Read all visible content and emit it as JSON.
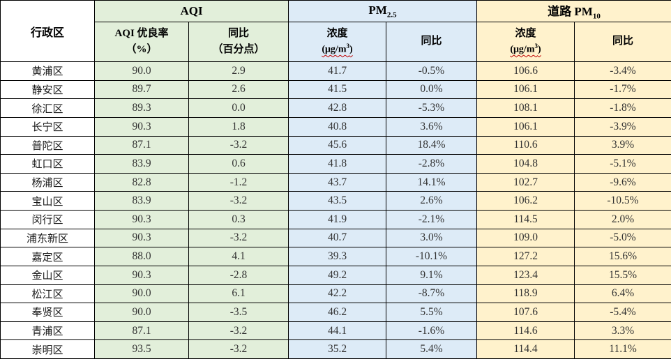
{
  "colors": {
    "aqi_section": "#e2efda",
    "pm25_section": "#ddebf7",
    "pm10_section": "#fff2cc",
    "border": "#000000",
    "header_text": "#000000",
    "body_text": "#333333",
    "spellcheck_underline": "#c00000"
  },
  "table": {
    "header": {
      "district": "行政区"
    },
    "groups": [
      {
        "title": {
          "pre": "AQI",
          "sub": ""
        },
        "cols": [
          {
            "line1": "AQI 优良率",
            "line2": "（%）"
          },
          {
            "line1": "同比",
            "line2": "（百分点）"
          }
        ]
      },
      {
        "title": {
          "pre": "PM",
          "sub": "2.5"
        },
        "cols": [
          {
            "line1": "浓度",
            "unit": true
          },
          {
            "line1": "同比"
          }
        ]
      },
      {
        "title": {
          "pre": "道路 PM",
          "sub": "10"
        },
        "cols": [
          {
            "line1": "浓度",
            "unit": true
          },
          {
            "line1": "同比"
          }
        ]
      }
    ],
    "unit": {
      "open": "(",
      "base": "μg/m",
      "sup": "3",
      "close": ")"
    },
    "rows": [
      {
        "district": "黄浦区",
        "aqi_rate": "90.0",
        "aqi_yoy": "2.9",
        "pm25_conc": "41.7",
        "pm25_yoy": "-0.5%",
        "pm10_conc": "106.6",
        "pm10_yoy": "-3.4%"
      },
      {
        "district": "静安区",
        "aqi_rate": "89.7",
        "aqi_yoy": "2.6",
        "pm25_conc": "41.5",
        "pm25_yoy": "0.0%",
        "pm10_conc": "106.1",
        "pm10_yoy": "-1.7%"
      },
      {
        "district": "徐汇区",
        "aqi_rate": "89.3",
        "aqi_yoy": "0.0",
        "pm25_conc": "42.8",
        "pm25_yoy": "-5.3%",
        "pm10_conc": "108.1",
        "pm10_yoy": "-1.8%"
      },
      {
        "district": "长宁区",
        "aqi_rate": "90.3",
        "aqi_yoy": "1.8",
        "pm25_conc": "40.8",
        "pm25_yoy": "3.6%",
        "pm10_conc": "106.1",
        "pm10_yoy": "-3.9%"
      },
      {
        "district": "普陀区",
        "aqi_rate": "87.1",
        "aqi_yoy": "-3.2",
        "pm25_conc": "45.6",
        "pm25_yoy": "18.4%",
        "pm10_conc": "110.6",
        "pm10_yoy": "3.9%"
      },
      {
        "district": "虹口区",
        "aqi_rate": "83.9",
        "aqi_yoy": "0.6",
        "pm25_conc": "41.8",
        "pm25_yoy": "-2.8%",
        "pm10_conc": "104.8",
        "pm10_yoy": "-5.1%"
      },
      {
        "district": "杨浦区",
        "aqi_rate": "82.8",
        "aqi_yoy": "-1.2",
        "pm25_conc": "43.7",
        "pm25_yoy": "14.1%",
        "pm10_conc": "102.7",
        "pm10_yoy": "-9.6%"
      },
      {
        "district": "宝山区",
        "aqi_rate": "83.9",
        "aqi_yoy": "-3.2",
        "pm25_conc": "43.5",
        "pm25_yoy": "2.6%",
        "pm10_conc": "106.2",
        "pm10_yoy": "-10.5%"
      },
      {
        "district": "闵行区",
        "aqi_rate": "90.3",
        "aqi_yoy": "0.3",
        "pm25_conc": "41.9",
        "pm25_yoy": "-2.1%",
        "pm10_conc": "114.5",
        "pm10_yoy": "2.0%"
      },
      {
        "district": "浦东新区",
        "aqi_rate": "90.3",
        "aqi_yoy": "-3.2",
        "pm25_conc": "40.7",
        "pm25_yoy": "3.0%",
        "pm10_conc": "109.0",
        "pm10_yoy": "-5.0%"
      },
      {
        "district": "嘉定区",
        "aqi_rate": "88.0",
        "aqi_yoy": "4.1",
        "pm25_conc": "39.3",
        "pm25_yoy": "-10.1%",
        "pm10_conc": "127.2",
        "pm10_yoy": "15.6%"
      },
      {
        "district": "金山区",
        "aqi_rate": "90.3",
        "aqi_yoy": "-2.8",
        "pm25_conc": "49.2",
        "pm25_yoy": "9.1%",
        "pm10_conc": "123.4",
        "pm10_yoy": "15.5%"
      },
      {
        "district": "松江区",
        "aqi_rate": "90.0",
        "aqi_yoy": "6.1",
        "pm25_conc": "42.2",
        "pm25_yoy": "-8.7%",
        "pm10_conc": "118.9",
        "pm10_yoy": "6.4%"
      },
      {
        "district": "奉贤区",
        "aqi_rate": "90.0",
        "aqi_yoy": "-3.5",
        "pm25_conc": "46.2",
        "pm25_yoy": "5.5%",
        "pm10_conc": "107.6",
        "pm10_yoy": "-5.4%"
      },
      {
        "district": "青浦区",
        "aqi_rate": "87.1",
        "aqi_yoy": "-3.2",
        "pm25_conc": "44.1",
        "pm25_yoy": "-1.6%",
        "pm10_conc": "114.6",
        "pm10_yoy": "3.3%"
      },
      {
        "district": "崇明区",
        "aqi_rate": "93.5",
        "aqi_yoy": "-3.2",
        "pm25_conc": "35.2",
        "pm25_yoy": "5.4%",
        "pm10_conc": "114.4",
        "pm10_yoy": "11.1%"
      }
    ]
  }
}
